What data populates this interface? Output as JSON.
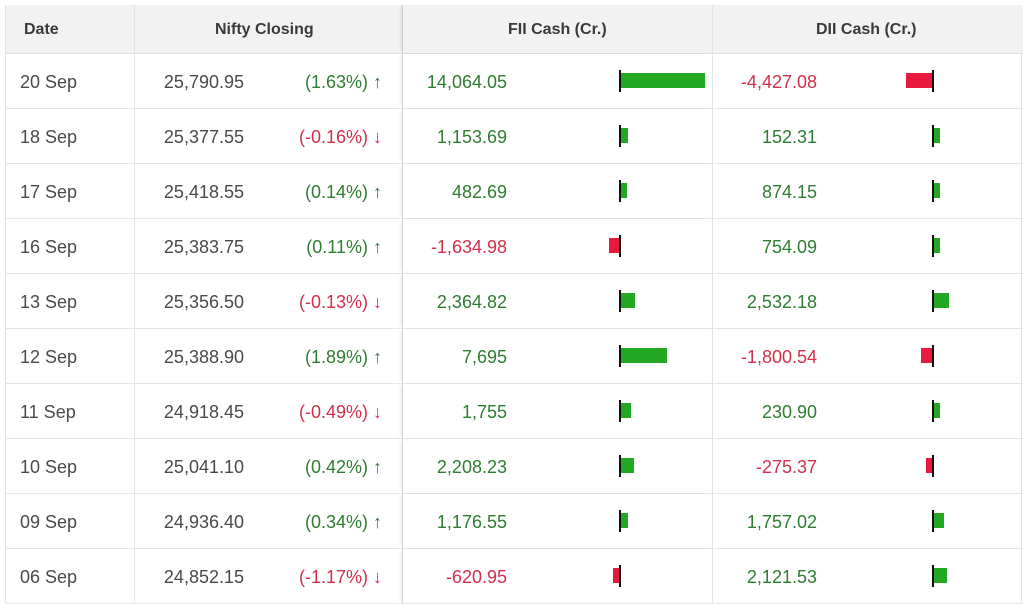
{
  "headers": {
    "date": "Date",
    "nifty": "Nifty Closing",
    "fii": "FII Cash (Cr.)",
    "dii": "DII Cash (Cr.)"
  },
  "colors": {
    "positive_text": "#2e7d32",
    "negative_text": "#d32f4a",
    "positive_bar": "#22a822",
    "negative_bar": "#e8193c"
  },
  "rows": [
    {
      "date": "20 Sep",
      "nifty": "25,790.95",
      "change": "(1.63%)",
      "dir": "up",
      "arrow": "↑",
      "fii": "14,064.05",
      "fii_value": 14064.05,
      "dii": "-4,427.08",
      "dii_value": -4427.08
    },
    {
      "date": "18 Sep",
      "nifty": "25,377.55",
      "change": "(-0.16%)",
      "dir": "down",
      "arrow": "↓",
      "fii": "1,153.69",
      "fii_value": 1153.69,
      "dii": "152.31",
      "dii_value": 152.31
    },
    {
      "date": "17 Sep",
      "nifty": "25,418.55",
      "change": "(0.14%)",
      "dir": "up",
      "arrow": "↑",
      "fii": "482.69",
      "fii_value": 482.69,
      "dii": "874.15",
      "dii_value": 874.15
    },
    {
      "date": "16 Sep",
      "nifty": "25,383.75",
      "change": "(0.11%)",
      "dir": "up",
      "arrow": "↑",
      "fii": "-1,634.98",
      "fii_value": -1634.98,
      "dii": "754.09",
      "dii_value": 754.09
    },
    {
      "date": "13 Sep",
      "nifty": "25,356.50",
      "change": "(-0.13%)",
      "dir": "down",
      "arrow": "↓",
      "fii": "2,364.82",
      "fii_value": 2364.82,
      "dii": "2,532.18",
      "dii_value": 2532.18
    },
    {
      "date": "12 Sep",
      "nifty": "25,388.90",
      "change": "(1.89%)",
      "dir": "up",
      "arrow": "↑",
      "fii": "7,695",
      "fii_value": 7695,
      "dii": "-1,800.54",
      "dii_value": -1800.54
    },
    {
      "date": "11 Sep",
      "nifty": "24,918.45",
      "change": "(-0.49%)",
      "dir": "down",
      "arrow": "↓",
      "fii": "1,755",
      "fii_value": 1755,
      "dii": "230.90",
      "dii_value": 230.9
    },
    {
      "date": "10 Sep",
      "nifty": "25,041.10",
      "change": "(0.42%)",
      "dir": "up",
      "arrow": "↑",
      "fii": "2,208.23",
      "fii_value": 2208.23,
      "dii": "-275.37",
      "dii_value": -275.37
    },
    {
      "date": "09 Sep",
      "nifty": "24,936.40",
      "change": "(0.34%)",
      "dir": "up",
      "arrow": "↑",
      "fii": "1,176.55",
      "fii_value": 1176.55,
      "dii": "1,757.02",
      "dii_value": 1757.02
    },
    {
      "date": "06 Sep",
      "nifty": "24,852.15",
      "change": "(-1.17%)",
      "dir": "down",
      "arrow": "↓",
      "fii": "-620.95",
      "fii_value": -620.95,
      "dii": "2,121.53",
      "dii_value": 2121.53
    }
  ]
}
